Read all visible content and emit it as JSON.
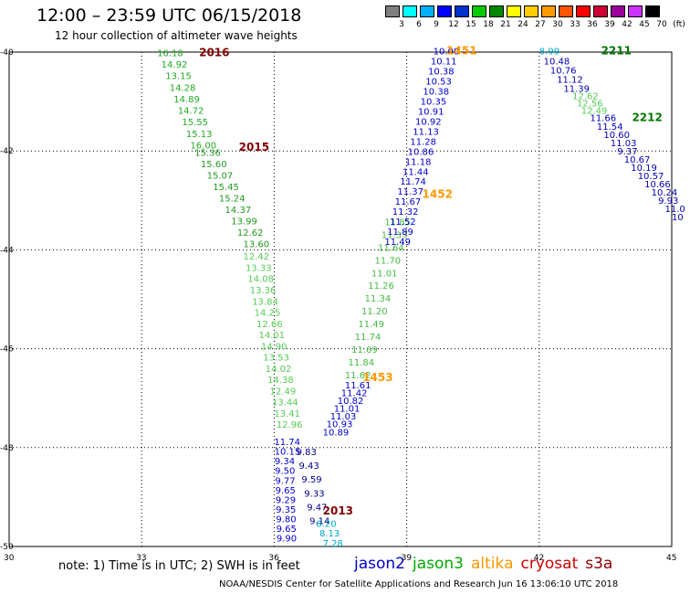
{
  "title": "12:00 – 23:59 UTC 06/15/2018",
  "subtitle": "12 hour collection of altimeter wave heights",
  "colorbar": {
    "labels": [
      "3",
      "6",
      "9",
      "12",
      "15",
      "18",
      "21",
      "24",
      "27",
      "30",
      "33",
      "36",
      "39",
      "42",
      "45",
      "70",
      "(ft)"
    ],
    "colors": [
      "#7f7f7f",
      "#00ffff",
      "#00b0ff",
      "#0000ff",
      "#0033cc",
      "#00cc00",
      "#008800",
      "#ffff00",
      "#ffcc00",
      "#ff9900",
      "#ff5500",
      "#ff0000",
      "#cc0033",
      "#990099",
      "#cc33ff",
      "#000000"
    ]
  },
  "axes": {
    "lat_labels": [
      "-40",
      "-42",
      "-44",
      "-46",
      "-48",
      "-50"
    ],
    "lon_labels": [
      "30",
      "33",
      "36",
      "39",
      "42",
      "45"
    ]
  },
  "chart_data": {
    "type": "scatter",
    "lon_range": [
      30,
      45
    ],
    "lat_range": [
      -50,
      -40
    ],
    "tracks": [
      {
        "color": "#22aa22",
        "label": "2016",
        "label_color": "#800000",
        "label_pos": [
          34.3,
          -40.08
        ],
        "start": [
          33.35,
          -40.08
        ],
        "end": [
          34.1,
          -41.95
        ],
        "values": [
          "16.18",
          "14.92",
          "13.15",
          "14.28",
          "14.89",
          "14.72",
          "15.55",
          "15.13",
          "16.00"
        ]
      },
      {
        "color": "#229922",
        "label": "2015",
        "label_color": "#800000",
        "label_pos": [
          35.2,
          -42.0
        ],
        "start": [
          34.2,
          -42.1
        ],
        "end": [
          35.3,
          -43.95
        ],
        "values": [
          "15.36",
          "15.60",
          "15.07",
          "15.45",
          "15.24",
          "14.37",
          "13.99",
          "12.62",
          "13.60"
        ]
      },
      {
        "color": "#55cc55",
        "label": "",
        "label_color": "#800000",
        "label_pos": [
          0,
          0
        ],
        "start": [
          35.3,
          -44.2
        ],
        "end": [
          36.05,
          -47.6
        ],
        "values": [
          "12.42",
          "13.33",
          "14.08",
          "13.36",
          "13.84",
          "14.25",
          "12.66",
          "14.01",
          "14.90",
          "13.53",
          "14.02",
          "14.38",
          "12.49",
          "13.44",
          "13.41",
          "12.96"
        ]
      },
      {
        "color": "#0000cc",
        "label": "",
        "label_color": "#800000",
        "label_pos": [
          0,
          0
        ],
        "start": [
          36.0,
          -47.95
        ],
        "end": [
          36.05,
          -49.9
        ],
        "values": [
          "11.74",
          "10.15",
          "9.34",
          "9.50",
          "9.77",
          "9.65",
          "9.29",
          "9.35",
          "9.80",
          "9.65",
          "9.90"
        ]
      },
      {
        "color": "#000088",
        "label": "2013",
        "label_color": "#800000",
        "label_pos": [
          37.1,
          -49.35
        ],
        "start": [
          36.5,
          -48.15
        ],
        "end": [
          36.8,
          -49.55
        ],
        "values": [
          "9.83",
          "9.43",
          "9.59",
          "9.33",
          "9.47",
          "9.14"
        ]
      },
      {
        "color": "#00aacc",
        "label": "",
        "label_color": "#800000",
        "label_pos": [
          0,
          0
        ],
        "start": [
          36.95,
          -49.6
        ],
        "end": [
          37.1,
          -50.0
        ],
        "values": [
          "8.20",
          "8.13",
          "7.28"
        ]
      },
      {
        "color": "#0000cc",
        "label": "",
        "label_color": "#800000",
        "label_pos": [
          0,
          0
        ],
        "start": [
          37.1,
          -47.75
        ],
        "end": [
          37.6,
          -46.8
        ],
        "values": [
          "10.89",
          "10.93",
          "11.03",
          "11.01",
          "10.82",
          "11.42",
          "11.61"
        ]
      },
      {
        "color": "#44bb44",
        "label": "",
        "label_color": "#800000",
        "label_pos": [
          0,
          0
        ],
        "start": [
          37.6,
          -46.6
        ],
        "end": [
          38.5,
          -43.5
        ],
        "values": [
          "11.62",
          "11.84",
          "11.69",
          "11.74",
          "11.49",
          "11.20",
          "11.34",
          "11.26",
          "11.01",
          "11.70",
          "11.64",
          "11.33",
          "11.85"
        ]
      },
      {
        "color": "#0000cc",
        "label": "1452",
        "label_color": "#ff9900",
        "label_pos": [
          39.35,
          -42.95
        ],
        "start": [
          38.5,
          -43.9
        ],
        "end": [
          39.6,
          -40.05
        ],
        "values": [
          "11.49",
          "11.89",
          "11.52",
          "11.32",
          "11.67",
          "11.37",
          "11.74",
          "11.44",
          "11.18",
          "10.86",
          "11.28",
          "11.13",
          "10.92",
          "10.91",
          "10.35",
          "10.38",
          "10.53",
          "10.38",
          "10.11",
          "10.00"
        ]
      },
      {
        "color": "#ff9900",
        "label": "1451",
        "label_color": "#ff9900",
        "label_pos": [
          39.9,
          -40.05
        ],
        "start": [
          0,
          0
        ],
        "end": [
          0,
          0
        ],
        "values": []
      },
      {
        "color": "#ff9900",
        "label": "1453",
        "label_color": "#ff9900",
        "label_pos": [
          38.0,
          -46.65
        ],
        "start": [
          0,
          0
        ],
        "end": [
          0,
          0
        ],
        "values": []
      },
      {
        "color": "#00aacc",
        "label": "",
        "label_color": "#800000",
        "label_pos": [
          0,
          0
        ],
        "start": [
          42.0,
          -40.05
        ],
        "end": [
          42.0,
          -40.05
        ],
        "values": [
          "8.99"
        ]
      },
      {
        "color": "#0000aa",
        "label": "2211",
        "label_color": "#007700",
        "label_pos": [
          43.4,
          -40.05
        ],
        "start": [
          42.1,
          -40.25
        ],
        "end": [
          42.55,
          -40.8
        ],
        "values": [
          "10.48",
          "10.76",
          "11.12",
          "11.39"
        ]
      },
      {
        "color": "#55cc55",
        "label": "2212",
        "label_color": "#007700",
        "label_pos": [
          44.1,
          -41.4
        ],
        "start": [
          42.75,
          -40.95
        ],
        "end": [
          42.95,
          -41.25
        ],
        "values": [
          "12.62",
          "12.56",
          "12.49"
        ]
      },
      {
        "color": "#0000aa",
        "label": "",
        "label_color": "#800000",
        "label_pos": [
          0,
          0
        ],
        "start": [
          43.15,
          -41.4
        ],
        "end": [
          45.0,
          -43.4
        ],
        "values": [
          "11.66",
          "11.54",
          "10.60",
          "11.03",
          "9.37",
          "10.67",
          "10.19",
          "10.57",
          "10.66",
          "10.24",
          "9.93",
          "11.0",
          "10"
        ]
      }
    ]
  },
  "note": "note: 1) Time is in UTC; 2) SWH is in feet",
  "legend": [
    {
      "name": "jason2",
      "color": "#0000cc"
    },
    {
      "name": "jason3",
      "color": "#00aa00"
    },
    {
      "name": "altika",
      "color": "#ff9900"
    },
    {
      "name": "cryosat",
      "color": "#cc0000"
    },
    {
      "name": "s3a",
      "color": "#880000"
    }
  ],
  "credit": "NOAA/NESDIS Center for Satellite Applications and Research   Jun 16 13:06:10 UTC 2018"
}
